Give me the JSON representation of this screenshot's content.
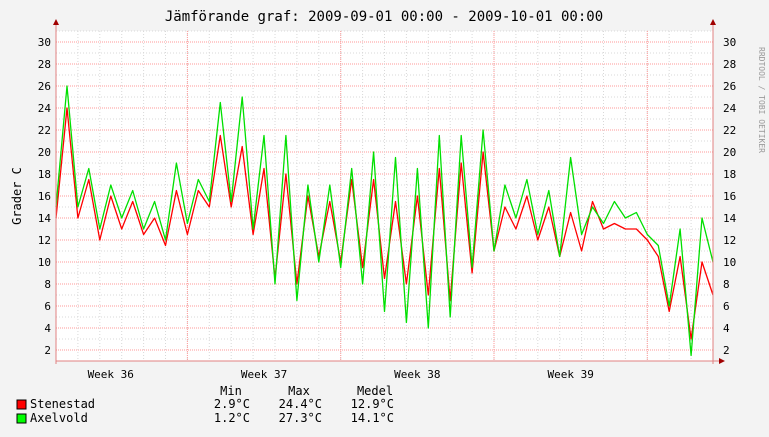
{
  "chart_data": {
    "type": "line",
    "title": "Jämförande graf: 2009-09-01 00:00 - 2009-10-01 00:00",
    "ylabel": "Grader C",
    "watermark": "RRDTOOL / TOBI OETIKER",
    "ylim": [
      1,
      31
    ],
    "yticks": [
      2,
      4,
      6,
      8,
      10,
      12,
      14,
      16,
      18,
      20,
      22,
      24,
      26,
      28,
      30
    ],
    "x_range": [
      "2009-09-01",
      "2009-10-01"
    ],
    "week_labels": [
      {
        "label": "Week 36",
        "center": "2009-09-03"
      },
      {
        "label": "Week 37",
        "center": "2009-09-10"
      },
      {
        "label": "Week 38",
        "center": "2009-09-17"
      },
      {
        "label": "Week 39",
        "center": "2009-09-24"
      }
    ],
    "major_grid_dates": [
      "2009-09-07",
      "2009-09-14",
      "2009-09-21",
      "2009-09-28"
    ],
    "series": [
      {
        "name": "Stenestad",
        "color": "#ff0000",
        "swatch_color": "#ff0000",
        "points": [
          [
            "2009-09-01 00:00",
            14.0
          ],
          [
            "2009-09-01 12:00",
            24.0
          ],
          [
            "2009-09-02 00:00",
            14.0
          ],
          [
            "2009-09-02 12:00",
            17.5
          ],
          [
            "2009-09-03 00:00",
            12.0
          ],
          [
            "2009-09-03 12:00",
            16.0
          ],
          [
            "2009-09-04 00:00",
            13.0
          ],
          [
            "2009-09-04 12:00",
            15.5
          ],
          [
            "2009-09-05 00:00",
            12.5
          ],
          [
            "2009-09-05 12:00",
            14.0
          ],
          [
            "2009-09-06 00:00",
            11.5
          ],
          [
            "2009-09-06 12:00",
            16.5
          ],
          [
            "2009-09-07 00:00",
            12.5
          ],
          [
            "2009-09-07 12:00",
            16.5
          ],
          [
            "2009-09-08 00:00",
            15.0
          ],
          [
            "2009-09-08 12:00",
            21.5
          ],
          [
            "2009-09-09 00:00",
            15.0
          ],
          [
            "2009-09-09 12:00",
            20.5
          ],
          [
            "2009-09-10 00:00",
            12.5
          ],
          [
            "2009-09-10 12:00",
            18.5
          ],
          [
            "2009-09-11 00:00",
            8.5
          ],
          [
            "2009-09-11 12:00",
            18.0
          ],
          [
            "2009-09-12 00:00",
            8.0
          ],
          [
            "2009-09-12 12:00",
            16.0
          ],
          [
            "2009-09-13 00:00",
            10.5
          ],
          [
            "2009-09-13 12:00",
            15.5
          ],
          [
            "2009-09-14 00:00",
            10.0
          ],
          [
            "2009-09-14 12:00",
            17.5
          ],
          [
            "2009-09-15 00:00",
            9.5
          ],
          [
            "2009-09-15 12:00",
            17.5
          ],
          [
            "2009-09-16 00:00",
            8.5
          ],
          [
            "2009-09-16 12:00",
            15.5
          ],
          [
            "2009-09-17 00:00",
            8.0
          ],
          [
            "2009-09-17 12:00",
            16.0
          ],
          [
            "2009-09-18 00:00",
            7.0
          ],
          [
            "2009-09-18 12:00",
            18.5
          ],
          [
            "2009-09-19 00:00",
            6.5
          ],
          [
            "2009-09-19 12:00",
            19.0
          ],
          [
            "2009-09-20 00:00",
            9.0
          ],
          [
            "2009-09-20 12:00",
            20.0
          ],
          [
            "2009-09-21 00:00",
            11.0
          ],
          [
            "2009-09-21 12:00",
            15.0
          ],
          [
            "2009-09-22 00:00",
            13.0
          ],
          [
            "2009-09-22 12:00",
            16.0
          ],
          [
            "2009-09-23 00:00",
            12.0
          ],
          [
            "2009-09-23 12:00",
            15.0
          ],
          [
            "2009-09-24 00:00",
            10.5
          ],
          [
            "2009-09-24 12:00",
            14.5
          ],
          [
            "2009-09-25 00:00",
            11.0
          ],
          [
            "2009-09-25 12:00",
            15.5
          ],
          [
            "2009-09-26 00:00",
            13.0
          ],
          [
            "2009-09-26 12:00",
            13.5
          ],
          [
            "2009-09-27 00:00",
            13.0
          ],
          [
            "2009-09-27 12:00",
            13.0
          ],
          [
            "2009-09-28 00:00",
            12.0
          ],
          [
            "2009-09-28 12:00",
            10.5
          ],
          [
            "2009-09-29 00:00",
            5.5
          ],
          [
            "2009-09-29 12:00",
            10.5
          ],
          [
            "2009-09-30 00:00",
            3.0
          ],
          [
            "2009-09-30 12:00",
            10.0
          ],
          [
            "2009-10-01 00:00",
            7.0
          ]
        ],
        "stats": {
          "min": "2.9°C",
          "max": "24.4°C",
          "mean": "12.9°C"
        }
      },
      {
        "name": "Axelvold",
        "color": "#00e000",
        "swatch_color": "#00ff00",
        "points": [
          [
            "2009-09-01 00:00",
            15.0
          ],
          [
            "2009-09-01 12:00",
            26.0
          ],
          [
            "2009-09-02 00:00",
            15.0
          ],
          [
            "2009-09-02 12:00",
            18.5
          ],
          [
            "2009-09-03 00:00",
            13.0
          ],
          [
            "2009-09-03 12:00",
            17.0
          ],
          [
            "2009-09-04 00:00",
            14.0
          ],
          [
            "2009-09-04 12:00",
            16.5
          ],
          [
            "2009-09-05 00:00",
            13.0
          ],
          [
            "2009-09-05 12:00",
            15.5
          ],
          [
            "2009-09-06 00:00",
            12.0
          ],
          [
            "2009-09-06 12:00",
            19.0
          ],
          [
            "2009-09-07 00:00",
            13.5
          ],
          [
            "2009-09-07 12:00",
            17.5
          ],
          [
            "2009-09-08 00:00",
            15.5
          ],
          [
            "2009-09-08 12:00",
            24.5
          ],
          [
            "2009-09-09 00:00",
            15.5
          ],
          [
            "2009-09-09 12:00",
            25.0
          ],
          [
            "2009-09-10 00:00",
            13.0
          ],
          [
            "2009-09-10 12:00",
            21.5
          ],
          [
            "2009-09-11 00:00",
            8.0
          ],
          [
            "2009-09-11 12:00",
            21.5
          ],
          [
            "2009-09-12 00:00",
            6.5
          ],
          [
            "2009-09-12 12:00",
            17.0
          ],
          [
            "2009-09-13 00:00",
            10.0
          ],
          [
            "2009-09-13 12:00",
            17.0
          ],
          [
            "2009-09-14 00:00",
            9.5
          ],
          [
            "2009-09-14 12:00",
            18.5
          ],
          [
            "2009-09-15 00:00",
            8.0
          ],
          [
            "2009-09-15 12:00",
            20.0
          ],
          [
            "2009-09-16 00:00",
            5.5
          ],
          [
            "2009-09-16 12:00",
            19.5
          ],
          [
            "2009-09-17 00:00",
            4.5
          ],
          [
            "2009-09-17 12:00",
            18.5
          ],
          [
            "2009-09-18 00:00",
            4.0
          ],
          [
            "2009-09-18 12:00",
            21.5
          ],
          [
            "2009-09-19 00:00",
            5.0
          ],
          [
            "2009-09-19 12:00",
            21.5
          ],
          [
            "2009-09-20 00:00",
            9.5
          ],
          [
            "2009-09-20 12:00",
            22.0
          ],
          [
            "2009-09-21 00:00",
            11.0
          ],
          [
            "2009-09-21 12:00",
            17.0
          ],
          [
            "2009-09-22 00:00",
            14.0
          ],
          [
            "2009-09-22 12:00",
            17.5
          ],
          [
            "2009-09-23 00:00",
            12.5
          ],
          [
            "2009-09-23 12:00",
            16.5
          ],
          [
            "2009-09-24 00:00",
            10.5
          ],
          [
            "2009-09-24 12:00",
            19.5
          ],
          [
            "2009-09-25 00:00",
            12.5
          ],
          [
            "2009-09-25 12:00",
            15.0
          ],
          [
            "2009-09-26 00:00",
            13.5
          ],
          [
            "2009-09-26 12:00",
            15.5
          ],
          [
            "2009-09-27 00:00",
            14.0
          ],
          [
            "2009-09-27 12:00",
            14.5
          ],
          [
            "2009-09-28 00:00",
            12.5
          ],
          [
            "2009-09-28 12:00",
            11.5
          ],
          [
            "2009-09-29 00:00",
            6.0
          ],
          [
            "2009-09-29 12:00",
            13.0
          ],
          [
            "2009-09-30 00:00",
            1.5
          ],
          [
            "2009-09-30 12:00",
            14.0
          ],
          [
            "2009-10-01 00:00",
            10.0
          ]
        ],
        "stats": {
          "min": "1.2°C",
          "max": "27.3°C",
          "mean": "14.1°C"
        }
      }
    ],
    "legend": {
      "headers": {
        "min": "Min",
        "max": "Max",
        "mean": "Medel"
      }
    },
    "colors": {
      "background": "#f3f3f3",
      "plot": "#ffffff",
      "minor_grid": "#d8d8d8",
      "major_grid": "#ff9a9a",
      "axis": "#e08080",
      "arrow": "#a00000"
    }
  }
}
